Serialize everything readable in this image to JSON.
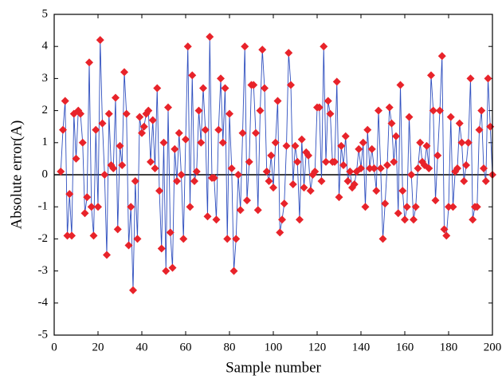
{
  "chart_data": {
    "type": "line",
    "xlabel": "Sample number",
    "ylabel": "Absolute error(A)",
    "x": [
      3,
      4,
      5,
      6,
      7,
      8,
      9,
      10,
      11,
      12,
      13,
      14,
      15,
      16,
      17,
      18,
      19,
      20,
      21,
      22,
      23,
      24,
      25,
      26,
      27,
      28,
      29,
      30,
      31,
      32,
      33,
      34,
      35,
      36,
      37,
      38,
      39,
      40,
      41,
      42,
      43,
      44,
      45,
      46,
      47,
      48,
      49,
      50,
      51,
      52,
      53,
      54,
      55,
      56,
      57,
      58,
      59,
      60,
      61,
      62,
      63,
      64,
      65,
      66,
      67,
      68,
      69,
      70,
      71,
      72,
      73,
      74,
      75,
      76,
      77,
      78,
      79,
      80,
      81,
      82,
      83,
      84,
      85,
      86,
      87,
      88,
      89,
      90,
      91,
      92,
      93,
      94,
      95,
      96,
      97,
      98,
      99,
      100,
      101,
      102,
      103,
      104,
      105,
      106,
      107,
      108,
      109,
      110,
      111,
      112,
      113,
      114,
      115,
      116,
      117,
      118,
      119,
      120,
      121,
      122,
      123,
      124,
      125,
      126,
      127,
      128,
      129,
      130,
      131,
      132,
      133,
      134,
      135,
      136,
      137,
      138,
      139,
      140,
      141,
      142,
      143,
      144,
      145,
      146,
      147,
      148,
      149,
      150,
      151,
      152,
      153,
      154,
      155,
      156,
      157,
      158,
      159,
      160,
      161,
      162,
      163,
      164,
      165,
      166,
      167,
      168,
      169,
      170,
      171,
      172,
      173,
      174,
      175,
      176,
      177,
      178,
      179,
      180,
      181,
      182,
      183,
      184,
      185,
      186,
      187,
      188,
      189,
      190,
      191,
      192,
      193,
      194,
      195,
      196,
      197,
      198,
      199,
      200
    ],
    "series": [
      {
        "line_color": "#2f4fbf",
        "marker_color": "#e8232a",
        "values": [
          0.1,
          1.4,
          2.3,
          -1.9,
          -0.6,
          -1.9,
          1.9,
          0.5,
          2.0,
          1.9,
          1.0,
          -1.2,
          -0.7,
          3.5,
          -1.0,
          -1.9,
          1.4,
          -1.0,
          4.2,
          1.6,
          0.0,
          -2.5,
          1.9,
          0.3,
          0.2,
          2.4,
          -1.7,
          0.9,
          0.3,
          3.2,
          1.9,
          -2.2,
          -1.0,
          -3.6,
          -0.2,
          -2.0,
          1.8,
          1.3,
          1.5,
          1.9,
          2.0,
          0.4,
          1.7,
          0.2,
          2.7,
          -0.5,
          -2.3,
          1.0,
          -3.0,
          2.1,
          -1.8,
          -2.9,
          0.8,
          -0.2,
          1.3,
          0.0,
          -2.0,
          1.1,
          4.0,
          -1.0,
          3.1,
          -0.2,
          0.1,
          2.0,
          1.0,
          2.7,
          1.4,
          -1.3,
          4.3,
          -0.1,
          -0.1,
          -1.4,
          1.4,
          3.0,
          1.0,
          2.7,
          -2.0,
          1.9,
          0.2,
          -3.0,
          -2.0,
          0.0,
          -1.1,
          1.3,
          4.0,
          -0.8,
          0.4,
          2.8,
          2.8,
          1.3,
          -1.1,
          2.0,
          3.9,
          2.7,
          0.1,
          -0.2,
          0.6,
          -0.4,
          1.0,
          2.3,
          -1.8,
          -1.4,
          -0.9,
          0.9,
          3.8,
          2.8,
          -0.3,
          0.9,
          0.4,
          -1.4,
          1.1,
          -0.4,
          0.7,
          0.6,
          -0.5,
          0.0,
          0.1,
          2.1,
          2.1,
          -0.2,
          4.0,
          0.4,
          2.3,
          1.9,
          0.4,
          0.4,
          2.9,
          -0.7,
          0.9,
          0.3,
          1.2,
          -0.2,
          0.1,
          -0.4,
          -0.3,
          0.1,
          0.8,
          0.2,
          1.0,
          -1.0,
          1.4,
          0.2,
          0.8,
          0.2,
          -0.5,
          2.0,
          0.2,
          -2.0,
          -0.9,
          0.3,
          2.1,
          1.6,
          0.4,
          1.2,
          -1.2,
          2.8,
          -0.5,
          -1.4,
          -1.0,
          1.8,
          0.0,
          -1.4,
          -1.0,
          0.2,
          1.0,
          0.4,
          0.3,
          0.9,
          0.2,
          3.1,
          2.0,
          -0.8,
          0.6,
          2.0,
          3.7,
          -1.7,
          -1.9,
          -1.0,
          1.8,
          -1.0,
          0.1,
          0.2,
          1.6,
          1.0,
          -0.2,
          0.3,
          1.0,
          3.0,
          -1.4,
          -1.0,
          -1.0,
          1.4,
          2.0,
          0.2,
          -0.2,
          3.0,
          1.5,
          0.0
        ]
      }
    ],
    "xlim": [
      0,
      200
    ],
    "xticks": [
      0,
      20,
      40,
      60,
      80,
      100,
      120,
      140,
      160,
      180,
      200
    ],
    "ylim": [
      -5,
      5
    ],
    "yticks": [
      -5,
      -4,
      -3,
      -2,
      -1,
      0,
      1,
      2,
      3,
      4,
      5
    ]
  }
}
